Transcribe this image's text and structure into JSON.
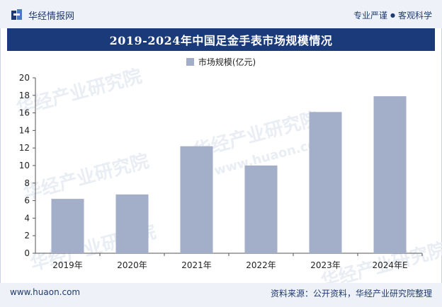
{
  "header": {
    "brand_name": "华经情报网",
    "tagline_left": "专业严谨",
    "tagline_sep": "●",
    "tagline_right": "客观科学"
  },
  "title": "2019-2024年中国足金手表市场规模情况",
  "watermark": {
    "text_cn": "华经产业研究院",
    "text_url": "www.huaon.com"
  },
  "footer": {
    "url": "www.huaon.com",
    "source": "资料来源：公开资料，华经产业研究院整理"
  },
  "colors": {
    "bar": "#a3aec9",
    "title_bg": "#1b3a7a",
    "accent": "#1f3a6e"
  },
  "chart_data": {
    "type": "bar",
    "title": "2019-2024年中国足金手表市场规模情况",
    "categories": [
      "2019年",
      "2020年",
      "2021年",
      "2022年",
      "2023年",
      "2024年E"
    ],
    "series": [
      {
        "name": "市场规模(亿元)",
        "values": [
          6.2,
          6.7,
          12.2,
          10.0,
          16.1,
          17.9
        ]
      }
    ],
    "xlabel": "",
    "ylabel": "",
    "ylim": [
      0,
      20
    ],
    "yticks": [
      0,
      2,
      4,
      6,
      8,
      10,
      12,
      14,
      16,
      18,
      20
    ],
    "legend_position": "top-center",
    "grid": false
  }
}
